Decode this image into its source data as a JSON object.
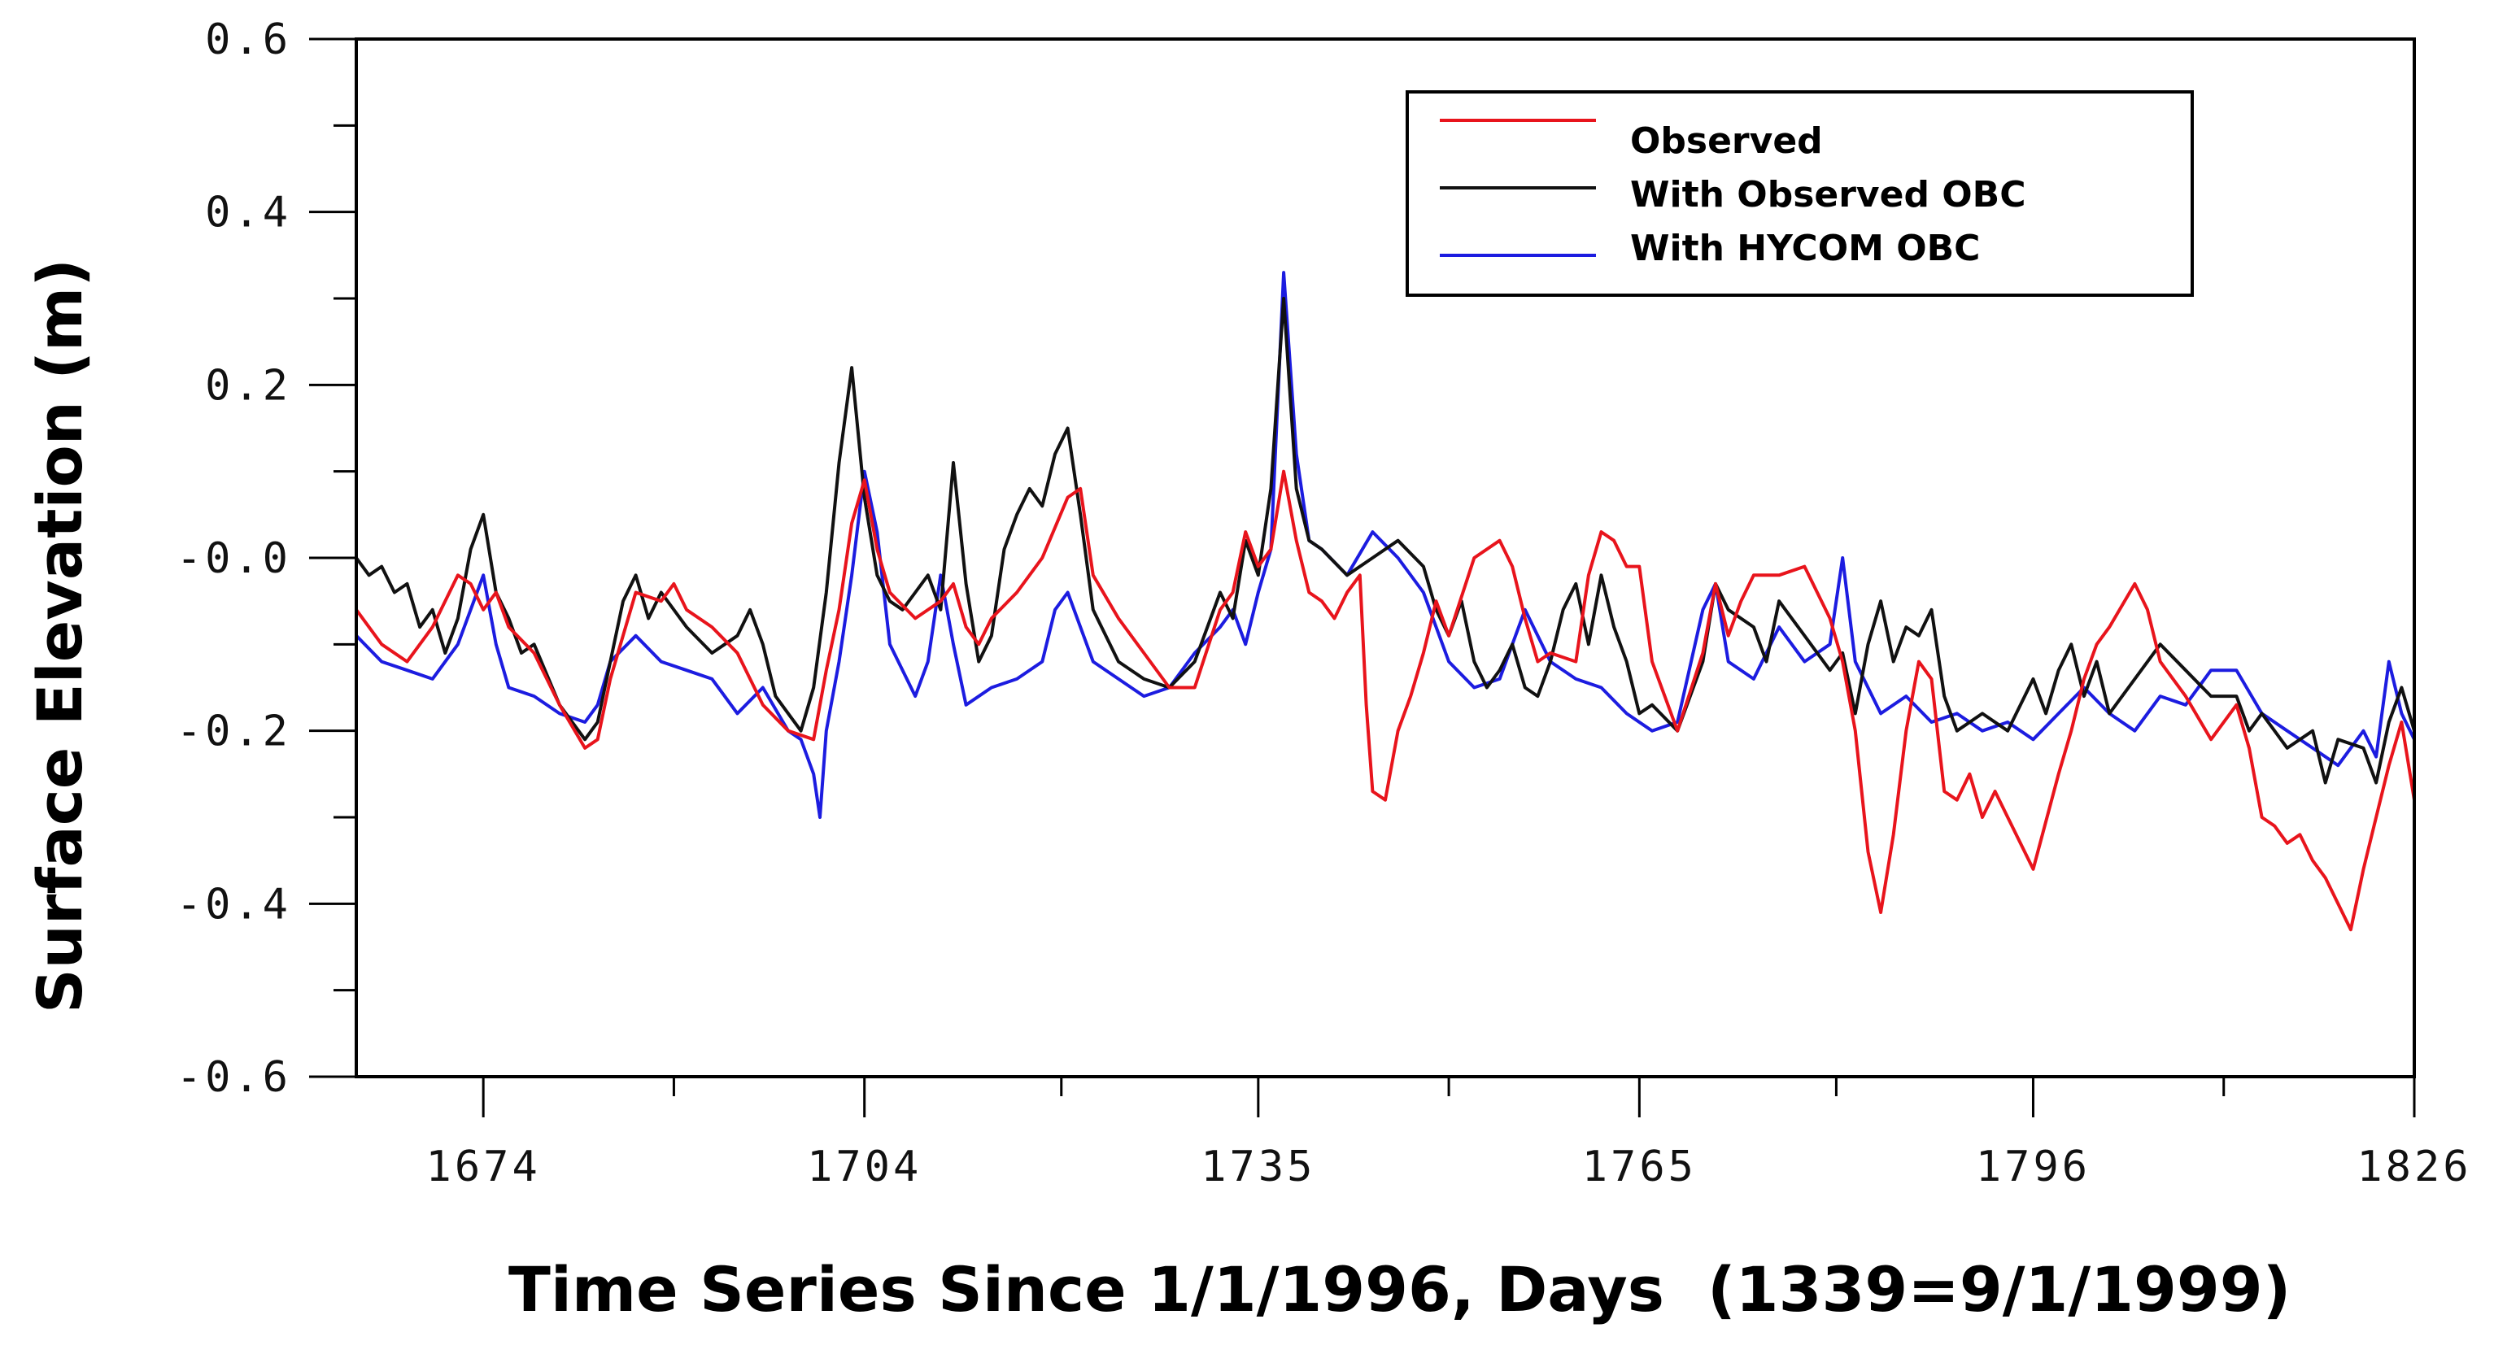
{
  "chart_data": {
    "type": "line",
    "title": "",
    "xlabel": "Time Series Since 1/1/1996, Days  (1339=9/1/1999)",
    "ylabel": "Surface Elevation (m)",
    "xlim": [
      1664,
      1826
    ],
    "ylim": [
      -0.6,
      0.6
    ],
    "x_ticks": [
      1674,
      1704,
      1735,
      1765,
      1796,
      1826
    ],
    "x_tick_labels": [
      "1674",
      "1704",
      "1735",
      "1765",
      "1796",
      "1826"
    ],
    "y_ticks": [
      0.6,
      0.4,
      0.2,
      0.0,
      -0.2,
      -0.4,
      -0.6
    ],
    "y_tick_labels": [
      "0.6",
      "0.4",
      "0.2",
      "-0.0",
      "-0.2",
      "-0.4",
      "-0.6"
    ],
    "legend_position": "top-right",
    "series": [
      {
        "name": "Observed",
        "color": "#e8141c",
        "x": [
          1664,
          1666,
          1668,
          1670,
          1672,
          1673,
          1674,
          1675,
          1676,
          1678,
          1680,
          1682,
          1683,
          1684,
          1686,
          1688,
          1689,
          1690,
          1692,
          1694,
          1696,
          1698,
          1700,
          1701,
          1702,
          1703,
          1704,
          1705,
          1706,
          1708,
          1710,
          1711,
          1712,
          1713,
          1714,
          1716,
          1718,
          1720,
          1721,
          1722,
          1724,
          1726,
          1728,
          1730,
          1732,
          1733,
          1734,
          1735,
          1736,
          1737,
          1738,
          1739,
          1740,
          1741,
          1742,
          1743,
          1743.5,
          1744,
          1745,
          1746,
          1747,
          1748,
          1749,
          1750,
          1752,
          1754,
          1755,
          1756,
          1757,
          1758,
          1760,
          1761,
          1762,
          1763,
          1764,
          1765,
          1766,
          1768,
          1770,
          1771,
          1772,
          1773,
          1774,
          1776,
          1778,
          1780,
          1781,
          1782,
          1783,
          1784,
          1785,
          1786,
          1787,
          1788,
          1789,
          1790,
          1791,
          1792,
          1793,
          1794,
          1796,
          1798,
          1799,
          1800,
          1801,
          1802,
          1804,
          1805,
          1806,
          1808,
          1810,
          1812,
          1813,
          1814,
          1815,
          1816,
          1817,
          1818,
          1819,
          1820,
          1821,
          1822,
          1823,
          1824,
          1825,
          1826
        ],
        "values": [
          -0.06,
          -0.1,
          -0.12,
          -0.08,
          -0.02,
          -0.03,
          -0.06,
          -0.04,
          -0.08,
          -0.11,
          -0.17,
          -0.22,
          -0.21,
          -0.14,
          -0.04,
          -0.05,
          -0.03,
          -0.06,
          -0.08,
          -0.11,
          -0.17,
          -0.2,
          -0.21,
          -0.13,
          -0.06,
          0.04,
          0.09,
          0.01,
          -0.04,
          -0.07,
          -0.05,
          -0.03,
          -0.08,
          -0.1,
          -0.07,
          -0.04,
          0.0,
          0.07,
          0.08,
          -0.02,
          -0.07,
          -0.11,
          -0.15,
          -0.15,
          -0.06,
          -0.04,
          0.03,
          -0.01,
          0.01,
          0.1,
          0.02,
          -0.04,
          -0.05,
          -0.07,
          -0.04,
          -0.02,
          -0.17,
          -0.27,
          -0.28,
          -0.2,
          -0.16,
          -0.11,
          -0.05,
          -0.09,
          0.0,
          0.02,
          -0.01,
          -0.07,
          -0.12,
          -0.11,
          -0.12,
          -0.02,
          0.03,
          0.02,
          -0.01,
          -0.01,
          -0.12,
          -0.2,
          -0.11,
          -0.03,
          -0.09,
          -0.05,
          -0.02,
          -0.02,
          -0.01,
          -0.07,
          -0.12,
          -0.2,
          -0.34,
          -0.41,
          -0.32,
          -0.2,
          -0.12,
          -0.14,
          -0.27,
          -0.28,
          -0.25,
          -0.3,
          -0.27,
          -0.3,
          -0.36,
          -0.25,
          -0.2,
          -0.14,
          -0.1,
          -0.08,
          -0.03,
          -0.06,
          -0.12,
          -0.16,
          -0.21,
          -0.17,
          -0.22,
          -0.3,
          -0.31,
          -0.33,
          -0.32,
          -0.35,
          -0.37,
          -0.4,
          -0.43,
          -0.36,
          -0.3,
          -0.24,
          -0.19,
          -0.28
        ]
      },
      {
        "name": "With Observed OBC",
        "color": "#111111",
        "x": [
          1664,
          1665,
          1666,
          1667,
          1668,
          1669,
          1670,
          1671,
          1672,
          1673,
          1674,
          1675,
          1676,
          1677,
          1678,
          1680,
          1682,
          1683,
          1684,
          1685,
          1686,
          1687,
          1688,
          1690,
          1692,
          1694,
          1695,
          1696,
          1697,
          1698,
          1699,
          1700,
          1701,
          1702,
          1703,
          1704,
          1705,
          1706,
          1707,
          1708,
          1709,
          1710,
          1711,
          1712,
          1713,
          1714,
          1715,
          1716,
          1717,
          1718,
          1719,
          1720,
          1721,
          1722,
          1724,
          1726,
          1728,
          1730,
          1732,
          1733,
          1734,
          1735,
          1736,
          1737,
          1738,
          1739,
          1740,
          1742,
          1744,
          1746,
          1748,
          1749,
          1750,
          1751,
          1752,
          1753,
          1754,
          1755,
          1756,
          1757,
          1758,
          1759,
          1760,
          1761,
          1762,
          1763,
          1764,
          1765,
          1766,
          1768,
          1770,
          1771,
          1772,
          1774,
          1775,
          1776,
          1778,
          1780,
          1781,
          1782,
          1783,
          1784,
          1785,
          1786,
          1787,
          1788,
          1789,
          1790,
          1792,
          1794,
          1796,
          1797,
          1798,
          1799,
          1800,
          1801,
          1802,
          1804,
          1806,
          1808,
          1810,
          1812,
          1813,
          1814,
          1816,
          1818,
          1819,
          1820,
          1822,
          1823,
          1824,
          1825,
          1826
        ],
        "values": [
          0.0,
          -0.02,
          -0.01,
          -0.04,
          -0.03,
          -0.08,
          -0.06,
          -0.11,
          -0.07,
          0.01,
          0.05,
          -0.04,
          -0.07,
          -0.11,
          -0.1,
          -0.17,
          -0.21,
          -0.19,
          -0.12,
          -0.05,
          -0.02,
          -0.07,
          -0.04,
          -0.08,
          -0.11,
          -0.09,
          -0.06,
          -0.1,
          -0.16,
          -0.18,
          -0.2,
          -0.15,
          -0.04,
          0.11,
          0.22,
          0.07,
          -0.02,
          -0.05,
          -0.06,
          -0.04,
          -0.02,
          -0.06,
          0.11,
          -0.03,
          -0.12,
          -0.09,
          0.01,
          0.05,
          0.08,
          0.06,
          0.12,
          0.15,
          0.05,
          -0.06,
          -0.12,
          -0.14,
          -0.15,
          -0.12,
          -0.04,
          -0.07,
          0.02,
          -0.02,
          0.08,
          0.3,
          0.08,
          0.02,
          0.01,
          -0.02,
          0.0,
          0.02,
          -0.01,
          -0.06,
          -0.09,
          -0.05,
          -0.12,
          -0.15,
          -0.13,
          -0.1,
          -0.15,
          -0.16,
          -0.12,
          -0.06,
          -0.03,
          -0.1,
          -0.02,
          -0.08,
          -0.12,
          -0.18,
          -0.17,
          -0.2,
          -0.12,
          -0.03,
          -0.06,
          -0.08,
          -0.12,
          -0.05,
          -0.09,
          -0.13,
          -0.11,
          -0.18,
          -0.1,
          -0.05,
          -0.12,
          -0.08,
          -0.09,
          -0.06,
          -0.16,
          -0.2,
          -0.18,
          -0.2,
          -0.14,
          -0.18,
          -0.13,
          -0.1,
          -0.16,
          -0.12,
          -0.18,
          -0.14,
          -0.1,
          -0.13,
          -0.16,
          -0.16,
          -0.2,
          -0.18,
          -0.22,
          -0.2,
          -0.26,
          -0.21,
          -0.22,
          -0.26,
          -0.19,
          -0.15,
          -0.2
        ]
      },
      {
        "name": "With HYCOM OBC",
        "color": "#1c1ce0",
        "x": [
          1664,
          1666,
          1668,
          1670,
          1672,
          1673,
          1674,
          1675,
          1676,
          1678,
          1680,
          1682,
          1683,
          1684,
          1686,
          1688,
          1690,
          1692,
          1694,
          1696,
          1698,
          1699,
          1700,
          1700.5,
          1701,
          1702,
          1703,
          1704,
          1705,
          1706,
          1708,
          1709,
          1710,
          1711,
          1712,
          1714,
          1716,
          1718,
          1719,
          1720,
          1722,
          1724,
          1726,
          1728,
          1730,
          1732,
          1733,
          1734,
          1735,
          1736,
          1737,
          1738,
          1739,
          1740,
          1742,
          1744,
          1746,
          1748,
          1750,
          1752,
          1754,
          1756,
          1758,
          1760,
          1762,
          1764,
          1766,
          1768,
          1770,
          1771,
          1772,
          1774,
          1776,
          1778,
          1780,
          1781,
          1782,
          1784,
          1786,
          1788,
          1790,
          1792,
          1794,
          1796,
          1798,
          1800,
          1802,
          1804,
          1806,
          1808,
          1810,
          1812,
          1814,
          1816,
          1818,
          1820,
          1822,
          1823,
          1824,
          1825,
          1826
        ],
        "values": [
          -0.09,
          -0.12,
          -0.13,
          -0.14,
          -0.1,
          -0.06,
          -0.02,
          -0.1,
          -0.15,
          -0.16,
          -0.18,
          -0.19,
          -0.17,
          -0.12,
          -0.09,
          -0.12,
          -0.13,
          -0.14,
          -0.18,
          -0.15,
          -0.2,
          -0.21,
          -0.25,
          -0.3,
          -0.2,
          -0.12,
          -0.02,
          0.1,
          0.03,
          -0.1,
          -0.16,
          -0.12,
          -0.02,
          -0.1,
          -0.17,
          -0.15,
          -0.14,
          -0.12,
          -0.06,
          -0.04,
          -0.12,
          -0.14,
          -0.16,
          -0.15,
          -0.11,
          -0.08,
          -0.06,
          -0.1,
          -0.04,
          0.01,
          0.33,
          0.12,
          0.02,
          0.01,
          -0.02,
          0.03,
          0.0,
          -0.04,
          -0.12,
          -0.15,
          -0.14,
          -0.06,
          -0.12,
          -0.14,
          -0.15,
          -0.18,
          -0.2,
          -0.19,
          -0.06,
          -0.03,
          -0.12,
          -0.14,
          -0.08,
          -0.12,
          -0.1,
          -0.0,
          -0.12,
          -0.18,
          -0.16,
          -0.19,
          -0.18,
          -0.2,
          -0.19,
          -0.21,
          -0.18,
          -0.15,
          -0.18,
          -0.2,
          -0.16,
          -0.17,
          -0.13,
          -0.13,
          -0.18,
          -0.2,
          -0.22,
          -0.24,
          -0.2,
          -0.23,
          -0.12,
          -0.18,
          -0.21
        ]
      }
    ]
  }
}
